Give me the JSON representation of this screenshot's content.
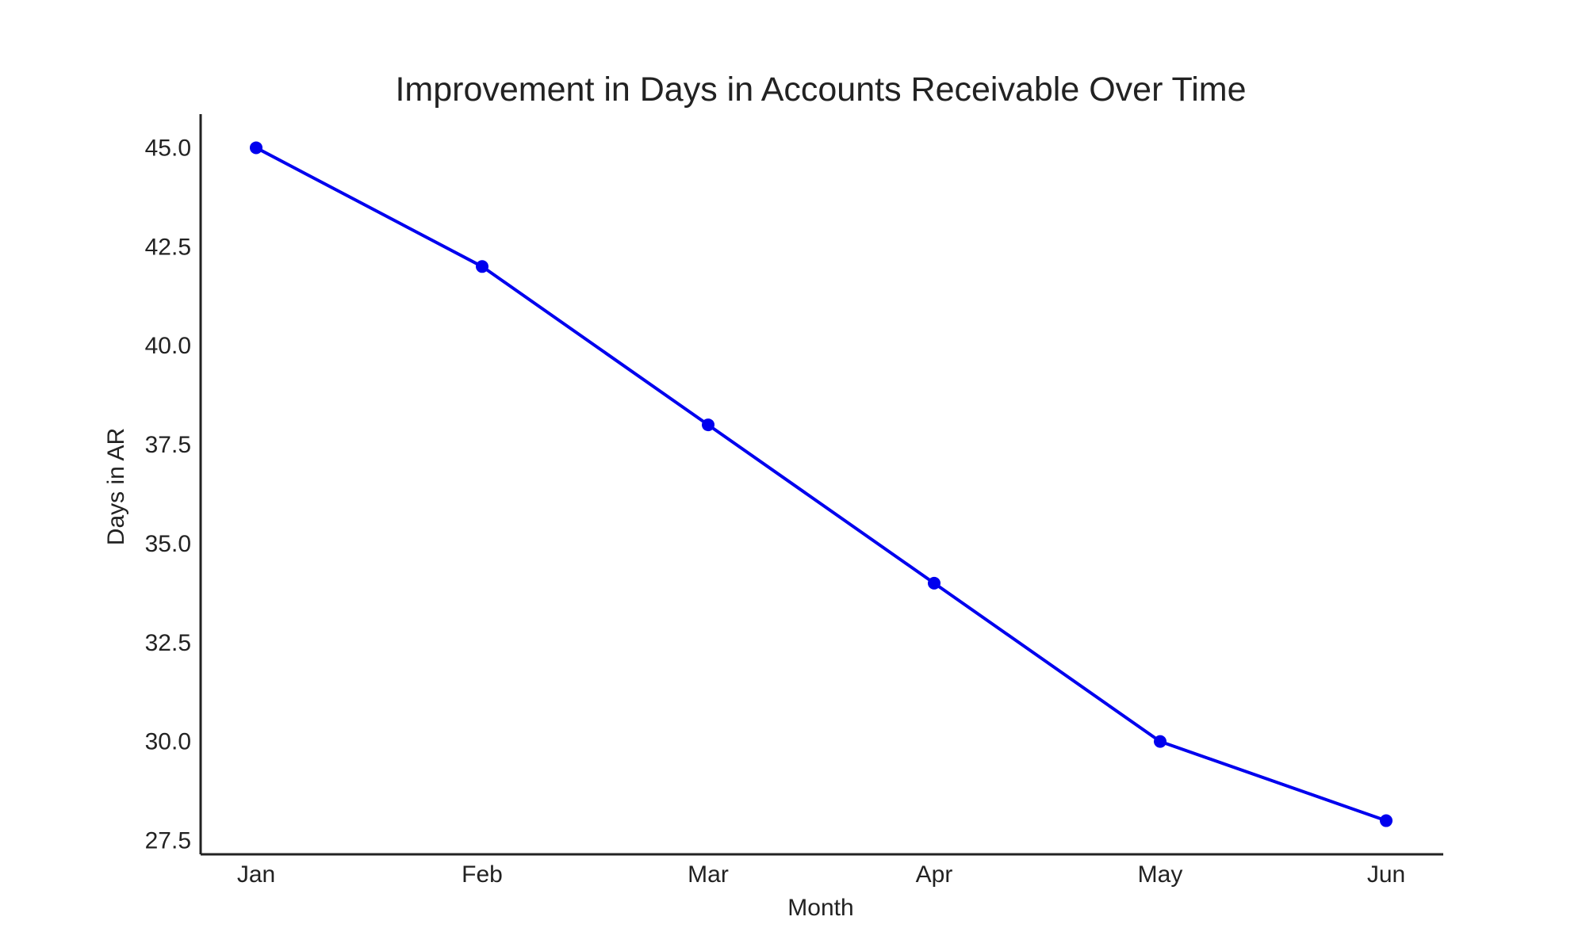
{
  "chart_data": {
    "type": "line",
    "title": "Improvement in Days in Accounts Receivable Over Time",
    "xlabel": "Month",
    "ylabel": "Days in AR",
    "categories": [
      "Jan",
      "Feb",
      "Mar",
      "Apr",
      "May",
      "Jun"
    ],
    "series": [
      {
        "values": [
          45,
          42,
          38,
          34,
          30,
          28
        ],
        "color": "#0000ee",
        "marker": "circle"
      }
    ],
    "yticks": [
      "27.5",
      "30.0",
      "32.5",
      "35.0",
      "37.5",
      "40.0",
      "42.5",
      "45.0"
    ],
    "ylim": [
      27.15,
      45.85
    ],
    "grid": false,
    "legend": "none"
  }
}
